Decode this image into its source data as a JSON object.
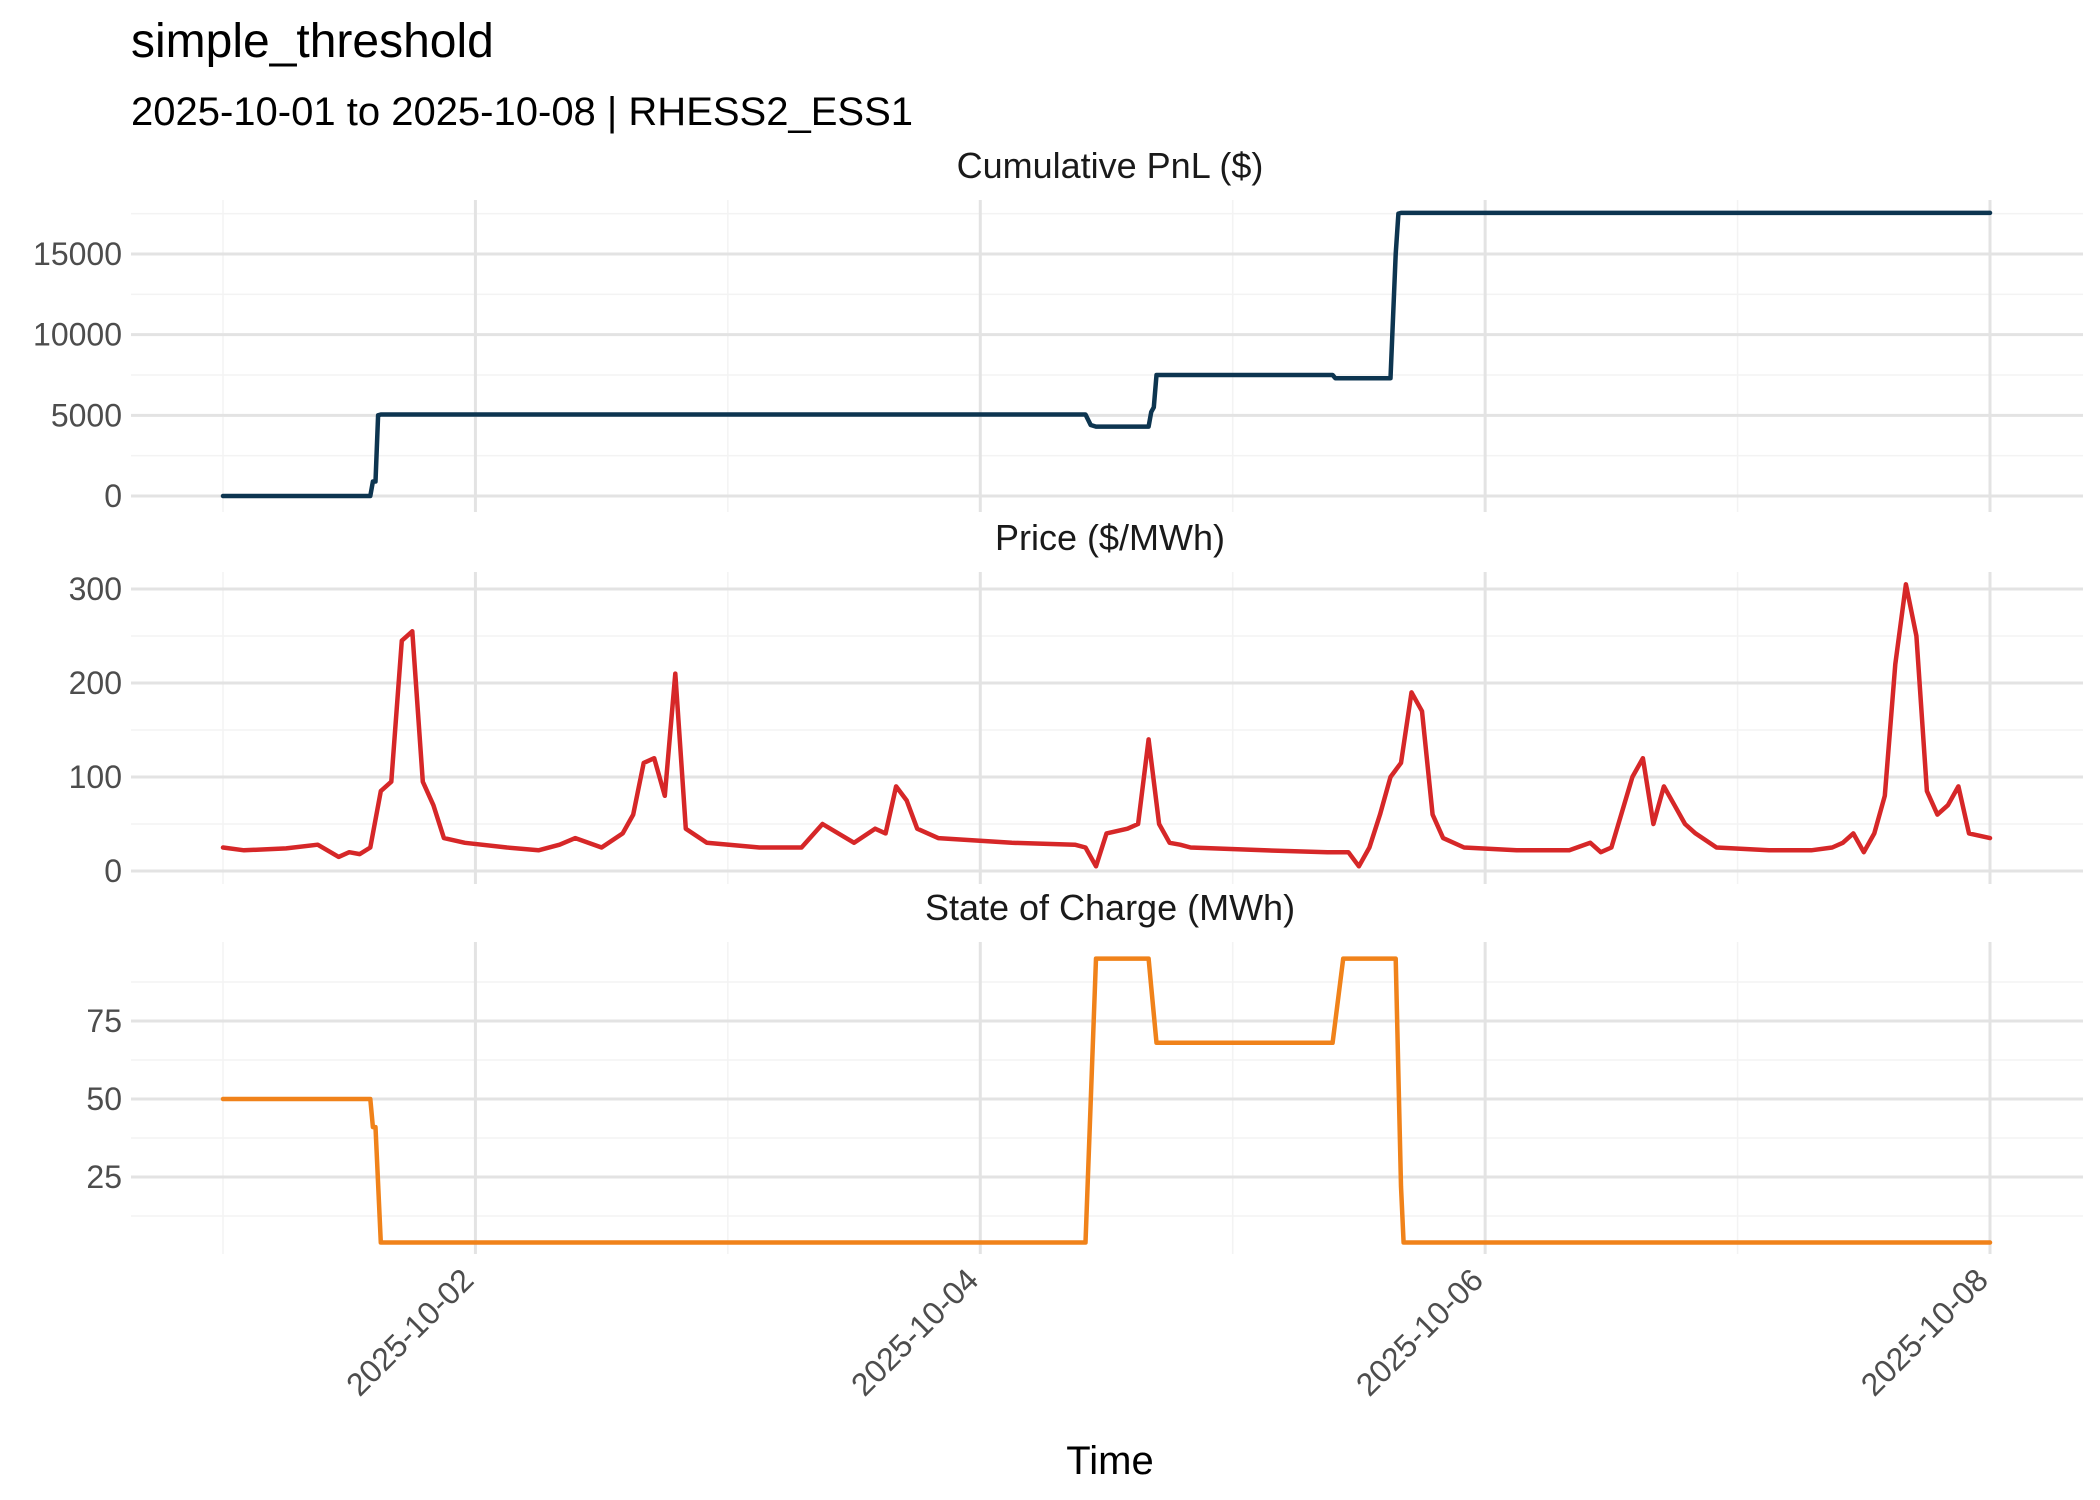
{
  "title": "simple_threshold",
  "subtitle": "2025-10-01 to 2025-10-08 | RHESS2_ESS1",
  "xlabel": "Time",
  "x_ticks": [
    "2025-10-02",
    "2025-10-04",
    "2025-10-06",
    "2025-10-08"
  ],
  "x_range": [
    "2025-10-01",
    "2025-10-08"
  ],
  "colors": {
    "pnl": "#0d3550",
    "price": "#d62728",
    "soc": "#f0821a",
    "grid": "#e3e3e3",
    "text": "#4d4d4d"
  },
  "chart_data": [
    {
      "type": "line",
      "panel_title": "Cumulative PnL ($)",
      "ylim": [
        0,
        18000
      ],
      "y_ticks": [
        0,
        5000,
        10000,
        15000
      ],
      "grid": true,
      "series": [
        {
          "x": [
            "2025-10-01T00:00",
            "2025-10-01T14:00",
            "2025-10-01T14:15",
            "2025-10-01T14:30",
            "2025-10-01T14:45",
            "2025-10-01T15:00",
            "2025-10-04T10:00",
            "2025-10-04T10:30",
            "2025-10-04T11:00",
            "2025-10-04T16:00",
            "2025-10-04T16:15",
            "2025-10-04T16:30",
            "2025-10-04T16:45",
            "2025-10-05T09:30",
            "2025-10-05T09:45",
            "2025-10-05T15:00",
            "2025-10-05T15:30",
            "2025-10-05T15:45",
            "2025-10-05T16:00",
            "2025-10-08T00:00"
          ],
          "values": [
            0,
            0,
            900,
            900,
            5000,
            5050,
            5050,
            4400,
            4300,
            4300,
            5200,
            5500,
            7500,
            7500,
            7300,
            7300,
            15000,
            17500,
            17550,
            17550
          ]
        }
      ]
    },
    {
      "type": "line",
      "panel_title": "Price ($/MWh)",
      "ylim": [
        0,
        310
      ],
      "y_ticks": [
        0,
        100,
        200,
        300
      ],
      "grid": true,
      "series": [
        {
          "x": [
            "2025-10-01T00:00",
            "2025-10-01T02:00",
            "2025-10-01T06:00",
            "2025-10-01T09:00",
            "2025-10-01T11:00",
            "2025-10-01T12:00",
            "2025-10-01T13:00",
            "2025-10-01T14:00",
            "2025-10-01T15:00",
            "2025-10-01T16:00",
            "2025-10-01T17:00",
            "2025-10-01T18:00",
            "2025-10-01T19:00",
            "2025-10-01T20:00",
            "2025-10-01T21:00",
            "2025-10-01T23:00",
            "2025-10-02T03:00",
            "2025-10-02T06:00",
            "2025-10-02T08:00",
            "2025-10-02T09:30",
            "2025-10-02T12:00",
            "2025-10-02T14:00",
            "2025-10-02T15:00",
            "2025-10-02T16:00",
            "2025-10-02T17:00",
            "2025-10-02T18:00",
            "2025-10-02T19:00",
            "2025-10-02T20:00",
            "2025-10-02T22:00",
            "2025-10-03T03:00",
            "2025-10-03T07:00",
            "2025-10-03T09:00",
            "2025-10-03T12:00",
            "2025-10-03T14:00",
            "2025-10-03T15:00",
            "2025-10-03T16:00",
            "2025-10-03T17:00",
            "2025-10-03T18:00",
            "2025-10-03T20:00",
            "2025-10-04T03:00",
            "2025-10-04T09:00",
            "2025-10-04T10:00",
            "2025-10-04T11:00",
            "2025-10-04T12:00",
            "2025-10-04T14:00",
            "2025-10-04T15:00",
            "2025-10-04T16:00",
            "2025-10-04T17:00",
            "2025-10-04T18:00",
            "2025-10-04T19:00",
            "2025-10-04T20:00",
            "2025-10-05T03:00",
            "2025-10-05T09:00",
            "2025-10-05T11:00",
            "2025-10-05T12:00",
            "2025-10-05T13:00",
            "2025-10-05T14:00",
            "2025-10-05T15:00",
            "2025-10-05T16:00",
            "2025-10-05T17:00",
            "2025-10-05T18:00",
            "2025-10-05T19:00",
            "2025-10-05T20:00",
            "2025-10-05T22:00",
            "2025-10-06T03:00",
            "2025-10-06T08:00",
            "2025-10-06T10:00",
            "2025-10-06T11:00",
            "2025-10-06T12:00",
            "2025-10-06T14:00",
            "2025-10-06T15:00",
            "2025-10-06T16:00",
            "2025-10-06T17:00",
            "2025-10-06T18:00",
            "2025-10-06T19:00",
            "2025-10-06T20:00",
            "2025-10-06T22:00",
            "2025-10-07T03:00",
            "2025-10-07T07:00",
            "2025-10-07T09:00",
            "2025-10-07T10:00",
            "2025-10-07T11:00",
            "2025-10-07T12:00",
            "2025-10-07T13:00",
            "2025-10-07T14:00",
            "2025-10-07T15:00",
            "2025-10-07T16:00",
            "2025-10-07T17:00",
            "2025-10-07T18:00",
            "2025-10-07T19:00",
            "2025-10-07T20:00",
            "2025-10-07T21:00",
            "2025-10-07T22:00",
            "2025-10-08T00:00"
          ],
          "values": [
            25,
            22,
            24,
            28,
            15,
            20,
            18,
            25,
            85,
            95,
            245,
            255,
            95,
            70,
            35,
            30,
            25,
            22,
            28,
            35,
            25,
            40,
            60,
            115,
            120,
            80,
            210,
            45,
            30,
            25,
            25,
            50,
            30,
            45,
            40,
            90,
            75,
            45,
            35,
            30,
            28,
            25,
            5,
            40,
            45,
            50,
            140,
            50,
            30,
            28,
            25,
            22,
            20,
            20,
            5,
            25,
            60,
            100,
            115,
            190,
            170,
            60,
            35,
            25,
            22,
            22,
            30,
            20,
            25,
            100,
            120,
            50,
            90,
            70,
            50,
            40,
            25,
            22,
            22,
            25,
            30,
            40,
            20,
            40,
            80,
            220,
            305,
            250,
            85,
            60,
            70,
            90,
            40,
            35
          ]
        }
      ]
    },
    {
      "type": "line",
      "panel_title": "State of Charge (MWh)",
      "ylim": [
        0,
        100
      ],
      "y_ticks": [
        25,
        50,
        75
      ],
      "grid": true,
      "series": [
        {
          "x": [
            "2025-10-01T00:00",
            "2025-10-01T14:00",
            "2025-10-01T14:15",
            "2025-10-01T14:30",
            "2025-10-01T15:00",
            "2025-10-04T10:00",
            "2025-10-04T11:00",
            "2025-10-04T16:00",
            "2025-10-04T16:15",
            "2025-10-04T16:45",
            "2025-10-05T09:30",
            "2025-10-05T10:30",
            "2025-10-05T15:30",
            "2025-10-05T16:00",
            "2025-10-05T16:15",
            "2025-10-08T00:00"
          ],
          "values": [
            50,
            50,
            41,
            41,
            4,
            4,
            95,
            95,
            86,
            68,
            68,
            95,
            95,
            22,
            4,
            4
          ]
        }
      ]
    }
  ]
}
